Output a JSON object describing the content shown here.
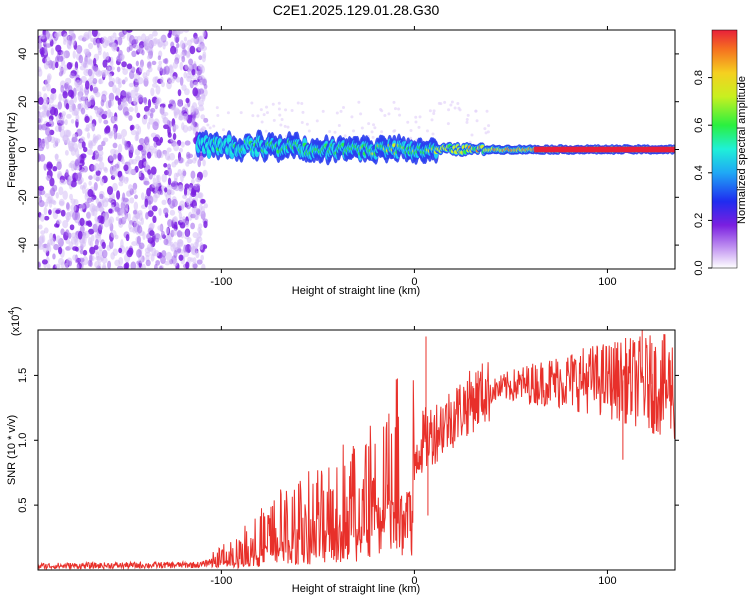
{
  "title": "C2E1.2025.129.01.28.G30",
  "colors": {
    "snr_line": "#e8302a",
    "spectrum_red": "#e8203a",
    "noise_purple": "#7a1fe0",
    "axis": "#000000"
  },
  "chart_data": [
    {
      "type": "heatmap",
      "name": "spectrogram",
      "xlabel": "Height of straight line (km)",
      "ylabel": "Frequency (Hz)",
      "xlim": [
        -195,
        135
      ],
      "ylim": [
        -50,
        50
      ],
      "xticks": [
        -100,
        0,
        100
      ],
      "xtick_labels": [
        "-100",
        "0",
        "100"
      ],
      "yticks": [
        -40,
        -20,
        0,
        20,
        40
      ],
      "ytick_labels": [
        "-40",
        "-20",
        "0",
        "20",
        "40"
      ],
      "colorbar": {
        "label": "Normalized spectral amplitude",
        "range": [
          0.0,
          1.0
        ],
        "ticks": [
          0.0,
          0.2,
          0.4,
          0.6,
          0.8
        ],
        "tick_labels": [
          "0.0",
          "0.2",
          "0.4",
          "0.6",
          "0.8"
        ],
        "colormap": "rainbow (white-violet-blue-cyan-green-yellow-red)"
      },
      "features": [
        {
          "label": "broadband noise",
          "x_range": [
            -195,
            -108
          ],
          "y_range": [
            -50,
            50
          ],
          "amplitude": 0.1
        },
        {
          "label": "signal band",
          "x_range": [
            -112,
            135
          ],
          "center_hz": 0,
          "amplitude_trend": "increasing with height"
        }
      ]
    },
    {
      "type": "line",
      "name": "snr",
      "xlabel": "Height of straight line (km)",
      "ylabel": "SNR (10 * v/v)",
      "multiplier_label": "(x10",
      "multiplier_exp": "4",
      "multiplier_close": ")",
      "xlim": [
        -195,
        135
      ],
      "ylim": [
        0,
        18500
      ],
      "xticks": [
        -100,
        0,
        100
      ],
      "xtick_labels": [
        "-100",
        "0",
        "100"
      ],
      "yticks": [
        5000,
        10000,
        15000
      ],
      "ytick_labels": [
        "0.5",
        "1.0",
        "1.5"
      ],
      "series": [
        {
          "envelope_points": [
            {
              "x": -195,
              "y": 300
            },
            {
              "x": -110,
              "y": 400
            },
            {
              "x": -100,
              "y": 1000
            },
            {
              "x": -90,
              "y": 1600
            },
            {
              "x": -80,
              "y": 2500
            },
            {
              "x": -70,
              "y": 3300
            },
            {
              "x": -60,
              "y": 3800
            },
            {
              "x": -50,
              "y": 4300
            },
            {
              "x": -40,
              "y": 5200
            },
            {
              "x": -30,
              "y": 6200
            },
            {
              "x": -20,
              "y": 7200
            },
            {
              "x": -10,
              "y": 8000
            },
            {
              "x": 0,
              "y": 9000
            },
            {
              "x": 5,
              "y": 10000
            },
            {
              "x": 15,
              "y": 11200
            },
            {
              "x": 25,
              "y": 12500
            },
            {
              "x": 35,
              "y": 13600
            },
            {
              "x": 50,
              "y": 14200
            },
            {
              "x": 70,
              "y": 14500
            },
            {
              "x": 90,
              "y": 14700
            },
            {
              "x": 110,
              "y": 14600
            },
            {
              "x": 125,
              "y": 14300
            },
            {
              "x": 135,
              "y": 14000
            }
          ],
          "spike_points": [
            {
              "x": 6,
              "y": 18000
            },
            {
              "x": 7,
              "y": 4200
            },
            {
              "x": 118,
              "y": 18500
            },
            {
              "x": 123,
              "y": 17500
            },
            {
              "x": 108,
              "y": 8500
            }
          ]
        }
      ]
    }
  ]
}
